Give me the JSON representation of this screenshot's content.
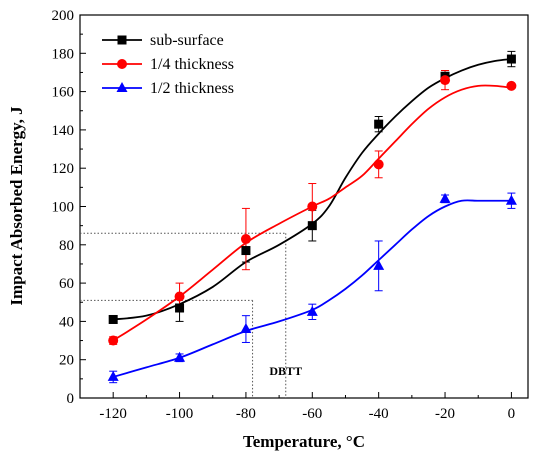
{
  "chart_data": {
    "type": "line",
    "xlabel": "Temperature, °C",
    "ylabel": "Impact Absorbed Energy, J",
    "xlim": [
      -130,
      5
    ],
    "ylim": [
      0,
      200
    ],
    "xticks": [
      -120,
      -100,
      -80,
      -60,
      -40,
      -20,
      0
    ],
    "yticks": [
      0,
      20,
      40,
      60,
      80,
      100,
      120,
      140,
      160,
      180,
      200
    ],
    "legend_position": "top-left",
    "grid": false,
    "series": [
      {
        "name": "sub-surface",
        "color": "#000000",
        "marker": "square",
        "points": [
          {
            "x": -120,
            "y": 41,
            "err": 0
          },
          {
            "x": -100,
            "y": 47,
            "err": 7
          },
          {
            "x": -80,
            "y": 77,
            "err": 6
          },
          {
            "x": -60,
            "y": 90,
            "err": 8
          },
          {
            "x": -40,
            "y": 143,
            "err": 4
          },
          {
            "x": -20,
            "y": 168,
            "err": 3
          },
          {
            "x": 0,
            "y": 177,
            "err": 4
          }
        ],
        "curve": [
          [
            -120,
            41
          ],
          [
            -110,
            43
          ],
          [
            -100,
            49
          ],
          [
            -90,
            58
          ],
          [
            -80,
            71
          ],
          [
            -70,
            80
          ],
          [
            -60,
            91
          ],
          [
            -55,
            100
          ],
          [
            -50,
            115
          ],
          [
            -45,
            128
          ],
          [
            -40,
            138
          ],
          [
            -35,
            147
          ],
          [
            -30,
            155
          ],
          [
            -25,
            162
          ],
          [
            -20,
            167
          ],
          [
            -15,
            171
          ],
          [
            -10,
            174
          ],
          [
            -5,
            176
          ],
          [
            0,
            177
          ]
        ]
      },
      {
        "name": "1/4 thickness",
        "color": "#ff0000",
        "marker": "circle",
        "points": [
          {
            "x": -120,
            "y": 30,
            "err": 2
          },
          {
            "x": -100,
            "y": 53,
            "err": 7
          },
          {
            "x": -80,
            "y": 83,
            "err": 16
          },
          {
            "x": -60,
            "y": 100,
            "err": 12
          },
          {
            "x": -40,
            "y": 122,
            "err": 7
          },
          {
            "x": -20,
            "y": 166,
            "err": 5
          },
          {
            "x": 0,
            "y": 163,
            "err": 1
          }
        ],
        "curve": [
          [
            -120,
            30
          ],
          [
            -110,
            41
          ],
          [
            -100,
            53
          ],
          [
            -90,
            67
          ],
          [
            -80,
            81
          ],
          [
            -70,
            91
          ],
          [
            -60,
            100
          ],
          [
            -55,
            104
          ],
          [
            -50,
            110
          ],
          [
            -45,
            116
          ],
          [
            -40,
            125
          ],
          [
            -35,
            134
          ],
          [
            -30,
            143
          ],
          [
            -25,
            151
          ],
          [
            -20,
            157
          ],
          [
            -15,
            161
          ],
          [
            -10,
            163
          ],
          [
            -5,
            163
          ],
          [
            0,
            162
          ]
        ]
      },
      {
        "name": "1/2 thickness",
        "color": "#0000ff",
        "marker": "triangle",
        "points": [
          {
            "x": -120,
            "y": 11,
            "err": 3
          },
          {
            "x": -100,
            "y": 21,
            "err": 2
          },
          {
            "x": -80,
            "y": 36,
            "err": 7
          },
          {
            "x": -60,
            "y": 45,
            "err": 4
          },
          {
            "x": -40,
            "y": 69,
            "err": 13
          },
          {
            "x": -20,
            "y": 104,
            "err": 2
          },
          {
            "x": 0,
            "y": 103,
            "err": 4
          }
        ],
        "curve": [
          [
            -120,
            11
          ],
          [
            -110,
            16
          ],
          [
            -100,
            21
          ],
          [
            -90,
            28
          ],
          [
            -80,
            35
          ],
          [
            -70,
            40
          ],
          [
            -60,
            46
          ],
          [
            -55,
            51
          ],
          [
            -50,
            57
          ],
          [
            -45,
            64
          ],
          [
            -40,
            72
          ],
          [
            -35,
            80
          ],
          [
            -30,
            88
          ],
          [
            -25,
            95
          ],
          [
            -20,
            100
          ],
          [
            -15,
            103
          ],
          [
            -10,
            103
          ],
          [
            -5,
            103
          ],
          [
            0,
            103
          ]
        ]
      }
    ],
    "reference_lines": [
      {
        "y": 86,
        "x_end": -68
      },
      {
        "y": 51,
        "x_end": -78
      }
    ],
    "reference_verticals": [
      {
        "x": -78,
        "y_end": 51
      },
      {
        "x": -68,
        "y_end": 86
      }
    ],
    "annotations": [
      {
        "text": "DBTT",
        "x": -68,
        "y": 12
      }
    ]
  }
}
